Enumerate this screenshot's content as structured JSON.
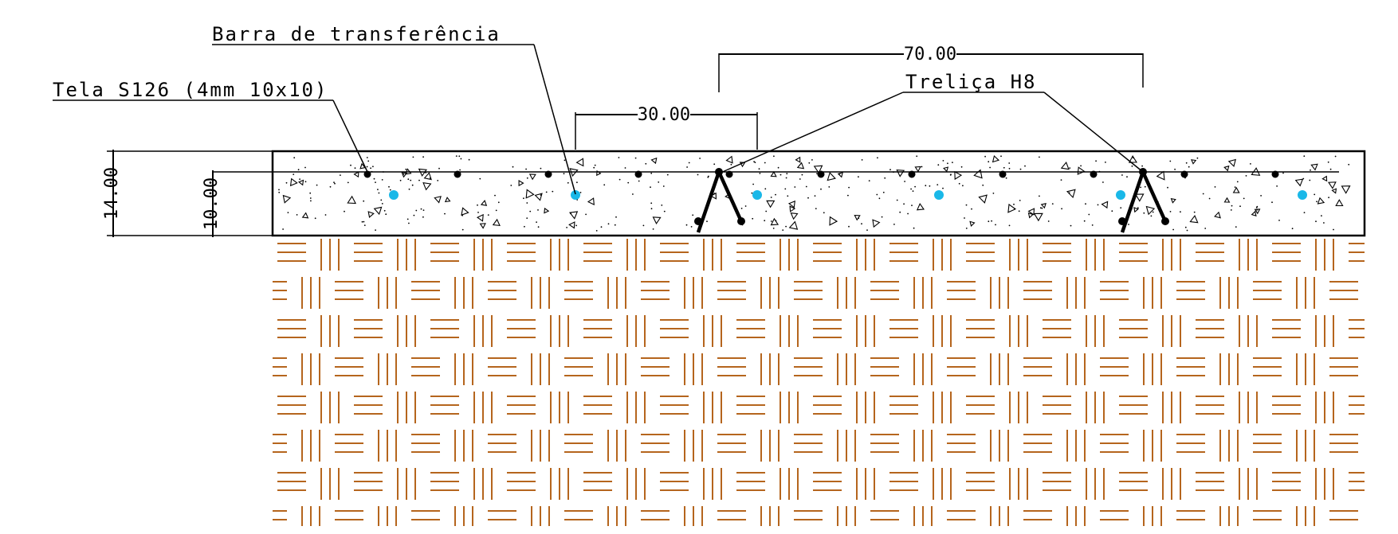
{
  "labels": {
    "tela": "Tela S126 (4mm 10x10)",
    "barra": "Barra de transferência",
    "trelica": "Treliça H8"
  },
  "dimensions": {
    "slab_thickness": "14.00",
    "mesh_depth": "10.00",
    "bar_spacing": "30.00",
    "truss_spacing": "70.00"
  },
  "colors": {
    "line": "#000000",
    "dowel": "#1ab8e8",
    "base_hatch": "#b5651d"
  }
}
